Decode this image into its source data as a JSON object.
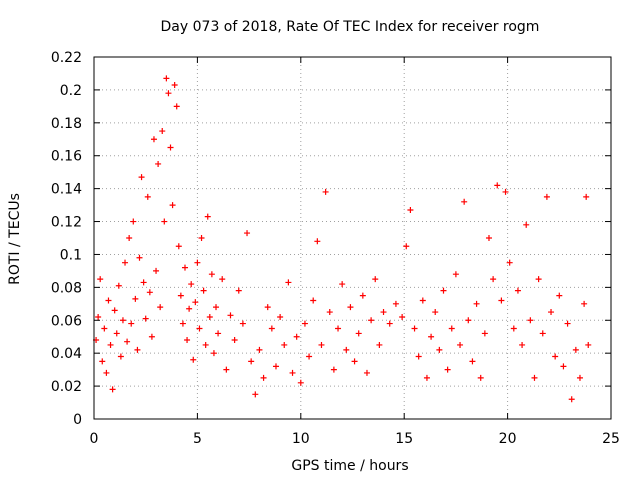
{
  "chart_data": {
    "type": "scatter",
    "title": "Day 073 of 2018, Rate Of TEC Index for receiver rogm",
    "xlabel": "GPS time / hours",
    "ylabel": "ROTI / TECUs",
    "xlim": [
      0,
      25
    ],
    "ylim": [
      0,
      0.22
    ],
    "xticks": [
      0,
      5,
      10,
      15,
      20,
      25
    ],
    "xtick_labels": [
      "0",
      "5",
      "10",
      "15",
      "20",
      "25"
    ],
    "yticks": [
      0,
      0.02,
      0.04,
      0.06,
      0.08,
      0.1,
      0.12,
      0.14,
      0.16,
      0.18,
      0.2,
      0.22
    ],
    "ytick_labels": [
      "0",
      "0.02",
      "0.04",
      "0.06",
      "0.08",
      "0.1",
      "0.12",
      "0.14",
      "0.16",
      "0.18",
      "0.2",
      "0.22"
    ],
    "grid": true,
    "marker": "+",
    "color": "#ff0000",
    "series": [
      {
        "name": "ROTI",
        "points": [
          [
            0.1,
            0.048
          ],
          [
            0.2,
            0.062
          ],
          [
            0.3,
            0.085
          ],
          [
            0.4,
            0.035
          ],
          [
            0.5,
            0.055
          ],
          [
            0.6,
            0.028
          ],
          [
            0.7,
            0.072
          ],
          [
            0.8,
            0.045
          ],
          [
            0.9,
            0.018
          ],
          [
            1.0,
            0.066
          ],
          [
            1.1,
            0.052
          ],
          [
            1.2,
            0.081
          ],
          [
            1.3,
            0.038
          ],
          [
            1.4,
            0.06
          ],
          [
            1.5,
            0.095
          ],
          [
            1.6,
            0.047
          ],
          [
            1.7,
            0.11
          ],
          [
            1.8,
            0.058
          ],
          [
            1.9,
            0.12
          ],
          [
            2.0,
            0.073
          ],
          [
            2.1,
            0.042
          ],
          [
            2.2,
            0.098
          ],
          [
            2.3,
            0.147
          ],
          [
            2.4,
            0.083
          ],
          [
            2.5,
            0.061
          ],
          [
            2.6,
            0.135
          ],
          [
            2.7,
            0.077
          ],
          [
            2.8,
            0.05
          ],
          [
            2.9,
            0.17
          ],
          [
            3.0,
            0.09
          ],
          [
            3.1,
            0.155
          ],
          [
            3.2,
            0.068
          ],
          [
            3.3,
            0.175
          ],
          [
            3.4,
            0.12
          ],
          [
            3.5,
            0.207
          ],
          [
            3.6,
            0.198
          ],
          [
            3.7,
            0.165
          ],
          [
            3.8,
            0.13
          ],
          [
            3.9,
            0.203
          ],
          [
            4.0,
            0.19
          ],
          [
            4.1,
            0.105
          ],
          [
            4.2,
            0.075
          ],
          [
            4.3,
            0.058
          ],
          [
            4.4,
            0.092
          ],
          [
            4.5,
            0.048
          ],
          [
            4.6,
            0.067
          ],
          [
            4.7,
            0.082
          ],
          [
            4.8,
            0.036
          ],
          [
            4.9,
            0.071
          ],
          [
            5.0,
            0.095
          ],
          [
            5.1,
            0.055
          ],
          [
            5.2,
            0.11
          ],
          [
            5.3,
            0.078
          ],
          [
            5.4,
            0.045
          ],
          [
            5.5,
            0.123
          ],
          [
            5.6,
            0.062
          ],
          [
            5.7,
            0.088
          ],
          [
            5.8,
            0.04
          ],
          [
            5.9,
            0.068
          ],
          [
            6.0,
            0.052
          ],
          [
            6.2,
            0.085
          ],
          [
            6.4,
            0.03
          ],
          [
            6.6,
            0.063
          ],
          [
            6.8,
            0.048
          ],
          [
            7.0,
            0.078
          ],
          [
            7.2,
            0.058
          ],
          [
            7.4,
            0.113
          ],
          [
            7.6,
            0.035
          ],
          [
            7.8,
            0.015
          ],
          [
            8.0,
            0.042
          ],
          [
            8.2,
            0.025
          ],
          [
            8.4,
            0.068
          ],
          [
            8.6,
            0.055
          ],
          [
            8.8,
            0.032
          ],
          [
            9.0,
            0.062
          ],
          [
            9.2,
            0.045
          ],
          [
            9.4,
            0.083
          ],
          [
            9.6,
            0.028
          ],
          [
            9.8,
            0.05
          ],
          [
            10.0,
            0.022
          ],
          [
            10.2,
            0.058
          ],
          [
            10.4,
            0.038
          ],
          [
            10.6,
            0.072
          ],
          [
            10.8,
            0.108
          ],
          [
            11.0,
            0.045
          ],
          [
            11.2,
            0.138
          ],
          [
            11.4,
            0.065
          ],
          [
            11.6,
            0.03
          ],
          [
            11.8,
            0.055
          ],
          [
            12.0,
            0.082
          ],
          [
            12.2,
            0.042
          ],
          [
            12.4,
            0.068
          ],
          [
            12.6,
            0.035
          ],
          [
            12.8,
            0.052
          ],
          [
            13.0,
            0.075
          ],
          [
            13.2,
            0.028
          ],
          [
            13.4,
            0.06
          ],
          [
            13.6,
            0.085
          ],
          [
            13.8,
            0.045
          ],
          [
            14.0,
            0.065
          ],
          [
            14.3,
            0.058
          ],
          [
            14.6,
            0.07
          ],
          [
            14.9,
            0.062
          ],
          [
            15.1,
            0.105
          ],
          [
            15.3,
            0.127
          ],
          [
            15.5,
            0.055
          ],
          [
            15.7,
            0.038
          ],
          [
            15.9,
            0.072
          ],
          [
            16.1,
            0.025
          ],
          [
            16.3,
            0.05
          ],
          [
            16.5,
            0.065
          ],
          [
            16.7,
            0.042
          ],
          [
            16.9,
            0.078
          ],
          [
            17.1,
            0.03
          ],
          [
            17.3,
            0.055
          ],
          [
            17.5,
            0.088
          ],
          [
            17.7,
            0.045
          ],
          [
            17.9,
            0.132
          ],
          [
            18.1,
            0.06
          ],
          [
            18.3,
            0.035
          ],
          [
            18.5,
            0.07
          ],
          [
            18.7,
            0.025
          ],
          [
            18.9,
            0.052
          ],
          [
            19.1,
            0.11
          ],
          [
            19.3,
            0.085
          ],
          [
            19.5,
            0.142
          ],
          [
            19.7,
            0.072
          ],
          [
            19.9,
            0.138
          ],
          [
            20.1,
            0.095
          ],
          [
            20.3,
            0.055
          ],
          [
            20.5,
            0.078
          ],
          [
            20.7,
            0.045
          ],
          [
            20.9,
            0.118
          ],
          [
            21.1,
            0.06
          ],
          [
            21.3,
            0.025
          ],
          [
            21.5,
            0.085
          ],
          [
            21.7,
            0.052
          ],
          [
            21.9,
            0.135
          ],
          [
            22.1,
            0.065
          ],
          [
            22.3,
            0.038
          ],
          [
            22.5,
            0.075
          ],
          [
            22.7,
            0.032
          ],
          [
            22.9,
            0.058
          ],
          [
            23.1,
            0.012
          ],
          [
            23.3,
            0.042
          ],
          [
            23.5,
            0.025
          ],
          [
            23.7,
            0.07
          ],
          [
            23.8,
            0.135
          ],
          [
            23.9,
            0.045
          ]
        ]
      }
    ]
  }
}
